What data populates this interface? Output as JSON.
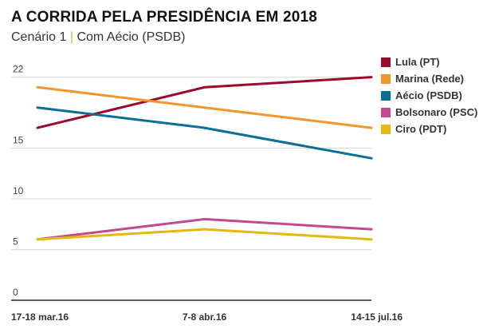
{
  "header": {
    "title": "A CORRIDA PELA PRESIDÊNCIA EM 2018",
    "subtitle_left": "Cenário 1",
    "subtitle_sep": "|",
    "subtitle_right": "Com Aécio (PSDB)"
  },
  "chart_data": {
    "type": "line",
    "title": "A CORRIDA PELA PRESIDÊNCIA EM 2018",
    "subtitle": "Cenário 1 | Com Aécio (PSDB)",
    "xlabel": "",
    "ylabel": "",
    "x": [
      "17-18 mar.16",
      "7-8 abr.16",
      "14-15 jul.16"
    ],
    "yticks": [
      0,
      5,
      10,
      15,
      22
    ],
    "ylim": [
      0,
      22
    ],
    "grid": true,
    "legend_position": "top-right",
    "series": [
      {
        "name": "Lula (PT)",
        "color": "#9b0a2a",
        "values": [
          17,
          21,
          22
        ]
      },
      {
        "name": "Marina (Rede)",
        "color": "#f2962b",
        "values": [
          21,
          19,
          17
        ]
      },
      {
        "name": "Aécio (PSDB)",
        "color": "#0a6f96",
        "values": [
          19,
          17,
          14
        ]
      },
      {
        "name": "Bolsonaro (PSC)",
        "color": "#c5488f",
        "values": [
          6,
          8,
          7
        ]
      },
      {
        "name": "Ciro (PDT)",
        "color": "#e6b80f",
        "values": [
          6,
          7,
          6
        ]
      }
    ]
  }
}
